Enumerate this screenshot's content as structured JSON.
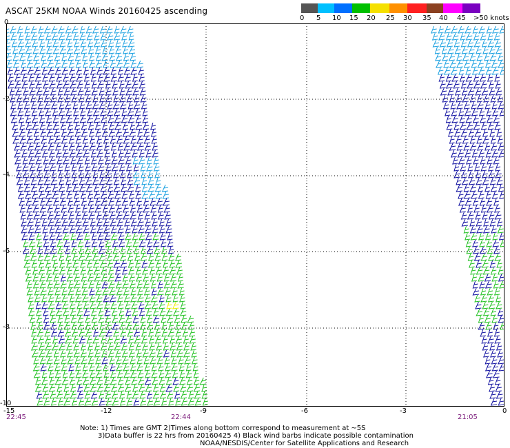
{
  "title": "ASCAT 25KM NOAA Winds 20160425 ascending",
  "legend": {
    "labels": [
      "0",
      "5",
      "10",
      "15",
      "20",
      "25",
      "30",
      "35",
      "40",
      "45",
      ">50 knots"
    ],
    "colors": [
      "#555555",
      "#00c0ff",
      "#0070ff",
      "#00c000",
      "#f5e000",
      "#ff9000",
      "#ff2020",
      "#ff2020",
      "#8b4020",
      "#ff00ff",
      "#7a00c0"
    ]
  },
  "axes": {
    "y_ticks": [
      "0",
      "-2",
      "-4",
      "-6",
      "-8",
      "-10"
    ],
    "x_ticks": [
      "-15",
      "-12",
      "-9",
      "-6",
      "-3",
      "0"
    ],
    "times": [
      "22:45",
      "22:44",
      "21:05"
    ]
  },
  "notes": {
    "line1": "Note: 1) Times are GMT 2)Times along bottom correspond to measurement at ~5S",
    "line2": "3)Data buffer is 22 hrs from 20160425 4) Black wind barbs indicate possible contamination",
    "line3": "NOAA/NESDIS/Center for Satellite Applications and Research"
  },
  "colors": {
    "light_blue": "#1aa0e0",
    "dark_blue": "#1010a0",
    "green": "#20c020",
    "yellow": "#f0f000",
    "time_purple": "#7a1a7a"
  }
}
